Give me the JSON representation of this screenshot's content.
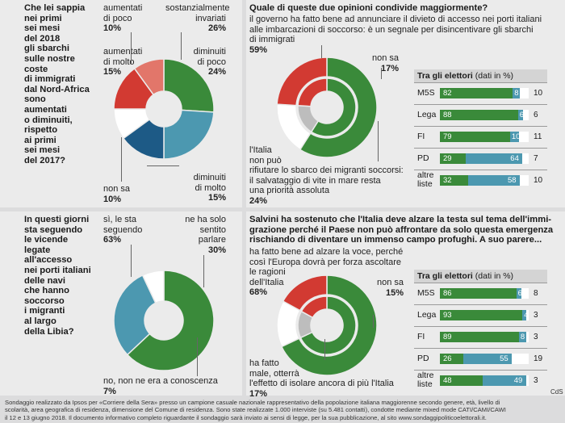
{
  "q1": {
    "question": "Che lei sappia nei primi sei mesi del 2018 gli sbarchi sulle nostre coste di immigrati dal Nord-Africa sono aumentati o diminuiti, rispetto ai primi sei mesi del 2017?",
    "lines": [
      "Che lei sappia",
      "nei primi",
      "sei mesi",
      "del 2018",
      "gli sbarchi",
      "sulle nostre",
      "coste",
      "di immigrati",
      "dal Nord-Africa",
      "sono",
      "aumentati",
      "o diminuiti,",
      "rispetto",
      "ai primi",
      "sei mesi",
      "del 2017?"
    ],
    "labels": {
      "aum_poco": [
        "aumentati",
        "di poco",
        "10%"
      ],
      "sost": [
        "sostanzialmente",
        "invariati",
        "26%"
      ],
      "aum_molto": [
        "aumentati",
        "di molto",
        "15%"
      ],
      "dim_poco": [
        "diminuiti",
        "di poco",
        "24%"
      ],
      "non_sa": [
        "non sa",
        "10%"
      ],
      "dim_molto": [
        "diminuiti",
        "di molto",
        "15%"
      ]
    }
  },
  "q2": {
    "question": "Quale di queste due opinioni condivide maggiormente?",
    "opt1_lines": [
      "il governo ha fatto bene ad annunciare il divieto di accesso nei porti italiani",
      "alle imbarcazioni di soccorso: è un segnale per disincentivare gli sbarchi",
      "di immigrati"
    ],
    "opt1_pct": "59%",
    "non_sa": [
      "non sa",
      "17%"
    ],
    "opt2_lines": [
      "l'Italia",
      "non può",
      "rifiutare lo sbarco dei migranti soccorsi:",
      "il salvataggio di vite in mare resta",
      "una priorità assoluta"
    ],
    "opt2_pct": "24%",
    "table_title": "Tra gli elettori",
    "table_unit": "(dati in %)",
    "rows": [
      {
        "label": "M5S",
        "g": "82",
        "t": "8",
        "r": "10"
      },
      {
        "label": "Lega",
        "g": "88",
        "t": "6",
        "r": "6"
      },
      {
        "label": "FI",
        "g": "79",
        "t": "10",
        "r": "11"
      },
      {
        "label": "PD",
        "g": "29",
        "t": "64",
        "r": "7"
      },
      {
        "label": "altre liste",
        "g": "32",
        "t": "58",
        "r": "10"
      }
    ]
  },
  "q3": {
    "question": "In questi giorni sta seguendo le vicende legate all'accesso nei porti italiani delle navi che hanno soccorso i migranti al largo della Libia?",
    "lines": [
      "In questi giorni",
      "sta seguendo",
      "le vicende",
      "legate",
      "all'accesso",
      "nei porti italiani",
      "delle navi",
      "che hanno",
      "soccorso",
      "i migranti",
      "al largo",
      "della Libia?"
    ],
    "si": [
      "sì, le sta",
      "seguendo",
      "63%"
    ],
    "ne_sentito": [
      "ne ha solo",
      "sentito",
      "parlare",
      "30%"
    ],
    "no": [
      "no, non ne era a conoscenza",
      "7%"
    ]
  },
  "q4": {
    "question_lines": [
      "Salvini ha sostenuto che l'Italia deve alzare la testa sul tema dell'immi-",
      "grazione perché il Paese non può affrontare da solo questa emergenza",
      "rischiando di diventare un immenso campo profughi.  A suo parere..."
    ],
    "opt1_lines": [
      "ha fatto bene ad alzare la voce, perché",
      "così l'Europa dovrà per forza ascoltare",
      "le ragioni",
      "dell'Italia"
    ],
    "opt1_pct": "68%",
    "non_sa": [
      "non sa",
      "15%"
    ],
    "opt2_lines": [
      "ha fatto",
      "male, otterrà",
      "l'effetto di isolare ancora di più l'Italia"
    ],
    "opt2_pct": "17%",
    "table_title": "Tra gli elettori",
    "table_unit": "(dati in %)",
    "rows": [
      {
        "label": "M5S",
        "g": "86",
        "t": "6",
        "r": "8"
      },
      {
        "label": "Lega",
        "g": "93",
        "t": "4",
        "r": "3"
      },
      {
        "label": "FI",
        "g": "89",
        "t": "8",
        "r": "3"
      },
      {
        "label": "PD",
        "g": "26",
        "t": "55",
        "r": "19"
      },
      {
        "label": "altre liste",
        "g": "48",
        "t": "49",
        "r": "3"
      }
    ]
  },
  "footer_lines": [
    "Sondaggio realizzato da Ipsos per «Corriere della Sera» presso un campione casuale nazionale rappresentativo della popolazione italiana maggiorenne secondo genere, età, livello di",
    "scolarità, area geografica di residenza, dimensione del Comune di residenza. Sono state realizzate 1.000 interviste (su 5.481 contatti), condotte mediante mixed mode CATI/CAMI/CAWI",
    "il 12 e 13 giugno 2018. Il documento informativo completo riguardante il sondaggio sarà inviato ai sensi di legge, per la sua pubblicazione, al sito www.sondaggipoliticoelettorali.it."
  ],
  "credit": "CdS",
  "colors": {
    "green": "#3a8a3a",
    "teal": "#4c98b0",
    "red": "#d23a32",
    "salmon": "#e2766a",
    "navy": "#1d5a86",
    "grey": "#bdbdbd",
    "white": "#ffffff"
  },
  "chart_data": [
    {
      "type": "pie",
      "variant": "donut",
      "categories": [
        "sostanzialmente invariati",
        "diminuiti di poco",
        "diminuiti di molto",
        "non sa",
        "aumentati di molto",
        "aumentati di poco"
      ],
      "values": [
        26,
        24,
        15,
        10,
        15,
        10
      ],
      "colors": [
        "#3a8a3a",
        "#4c98b0",
        "#1d5a86",
        "#ffffff",
        "#d23a32",
        "#e2766a"
      ]
    },
    {
      "type": "pie",
      "variant": "donut-nested",
      "categories": [
        "il governo ha fatto bene",
        "non sa",
        "l'Italia non può rifiutare lo sbarco"
      ],
      "values": [
        59,
        17,
        24
      ],
      "colors": [
        "#3a8a3a",
        "#ffffff",
        "#d23a32"
      ]
    },
    {
      "type": "pie",
      "variant": "donut",
      "categories": [
        "sì, le sta seguendo",
        "ne ha solo sentito parlare",
        "no, non ne era a conoscenza"
      ],
      "values": [
        63,
        30,
        7
      ],
      "colors": [
        "#3a8a3a",
        "#4c98b0",
        "#ffffff"
      ]
    },
    {
      "type": "pie",
      "variant": "donut-nested",
      "categories": [
        "ha fatto bene ad alzare la voce",
        "non sa",
        "ha fatto male"
      ],
      "values": [
        68,
        15,
        17
      ],
      "colors": [
        "#3a8a3a",
        "#ffffff",
        "#d23a32"
      ]
    },
    {
      "type": "bar",
      "variant": "stacked-horizontal",
      "title": "Tra gli elettori (dati in %)",
      "categories": [
        "M5S",
        "Lega",
        "FI",
        "PD",
        "altre liste"
      ],
      "series": [
        {
          "values": [
            82,
            88,
            79,
            29,
            32
          ]
        },
        {
          "values": [
            8,
            6,
            10,
            64,
            58
          ]
        },
        {
          "values": [
            10,
            6,
            11,
            7,
            10
          ]
        }
      ]
    },
    {
      "type": "bar",
      "variant": "stacked-horizontal",
      "title": "Tra gli elettori (dati in %)",
      "categories": [
        "M5S",
        "Lega",
        "FI",
        "PD",
        "altre liste"
      ],
      "series": [
        {
          "values": [
            86,
            93,
            89,
            26,
            48
          ]
        },
        {
          "values": [
            6,
            4,
            8,
            55,
            49
          ]
        },
        {
          "values": [
            8,
            3,
            3,
            19,
            3
          ]
        }
      ]
    }
  ]
}
